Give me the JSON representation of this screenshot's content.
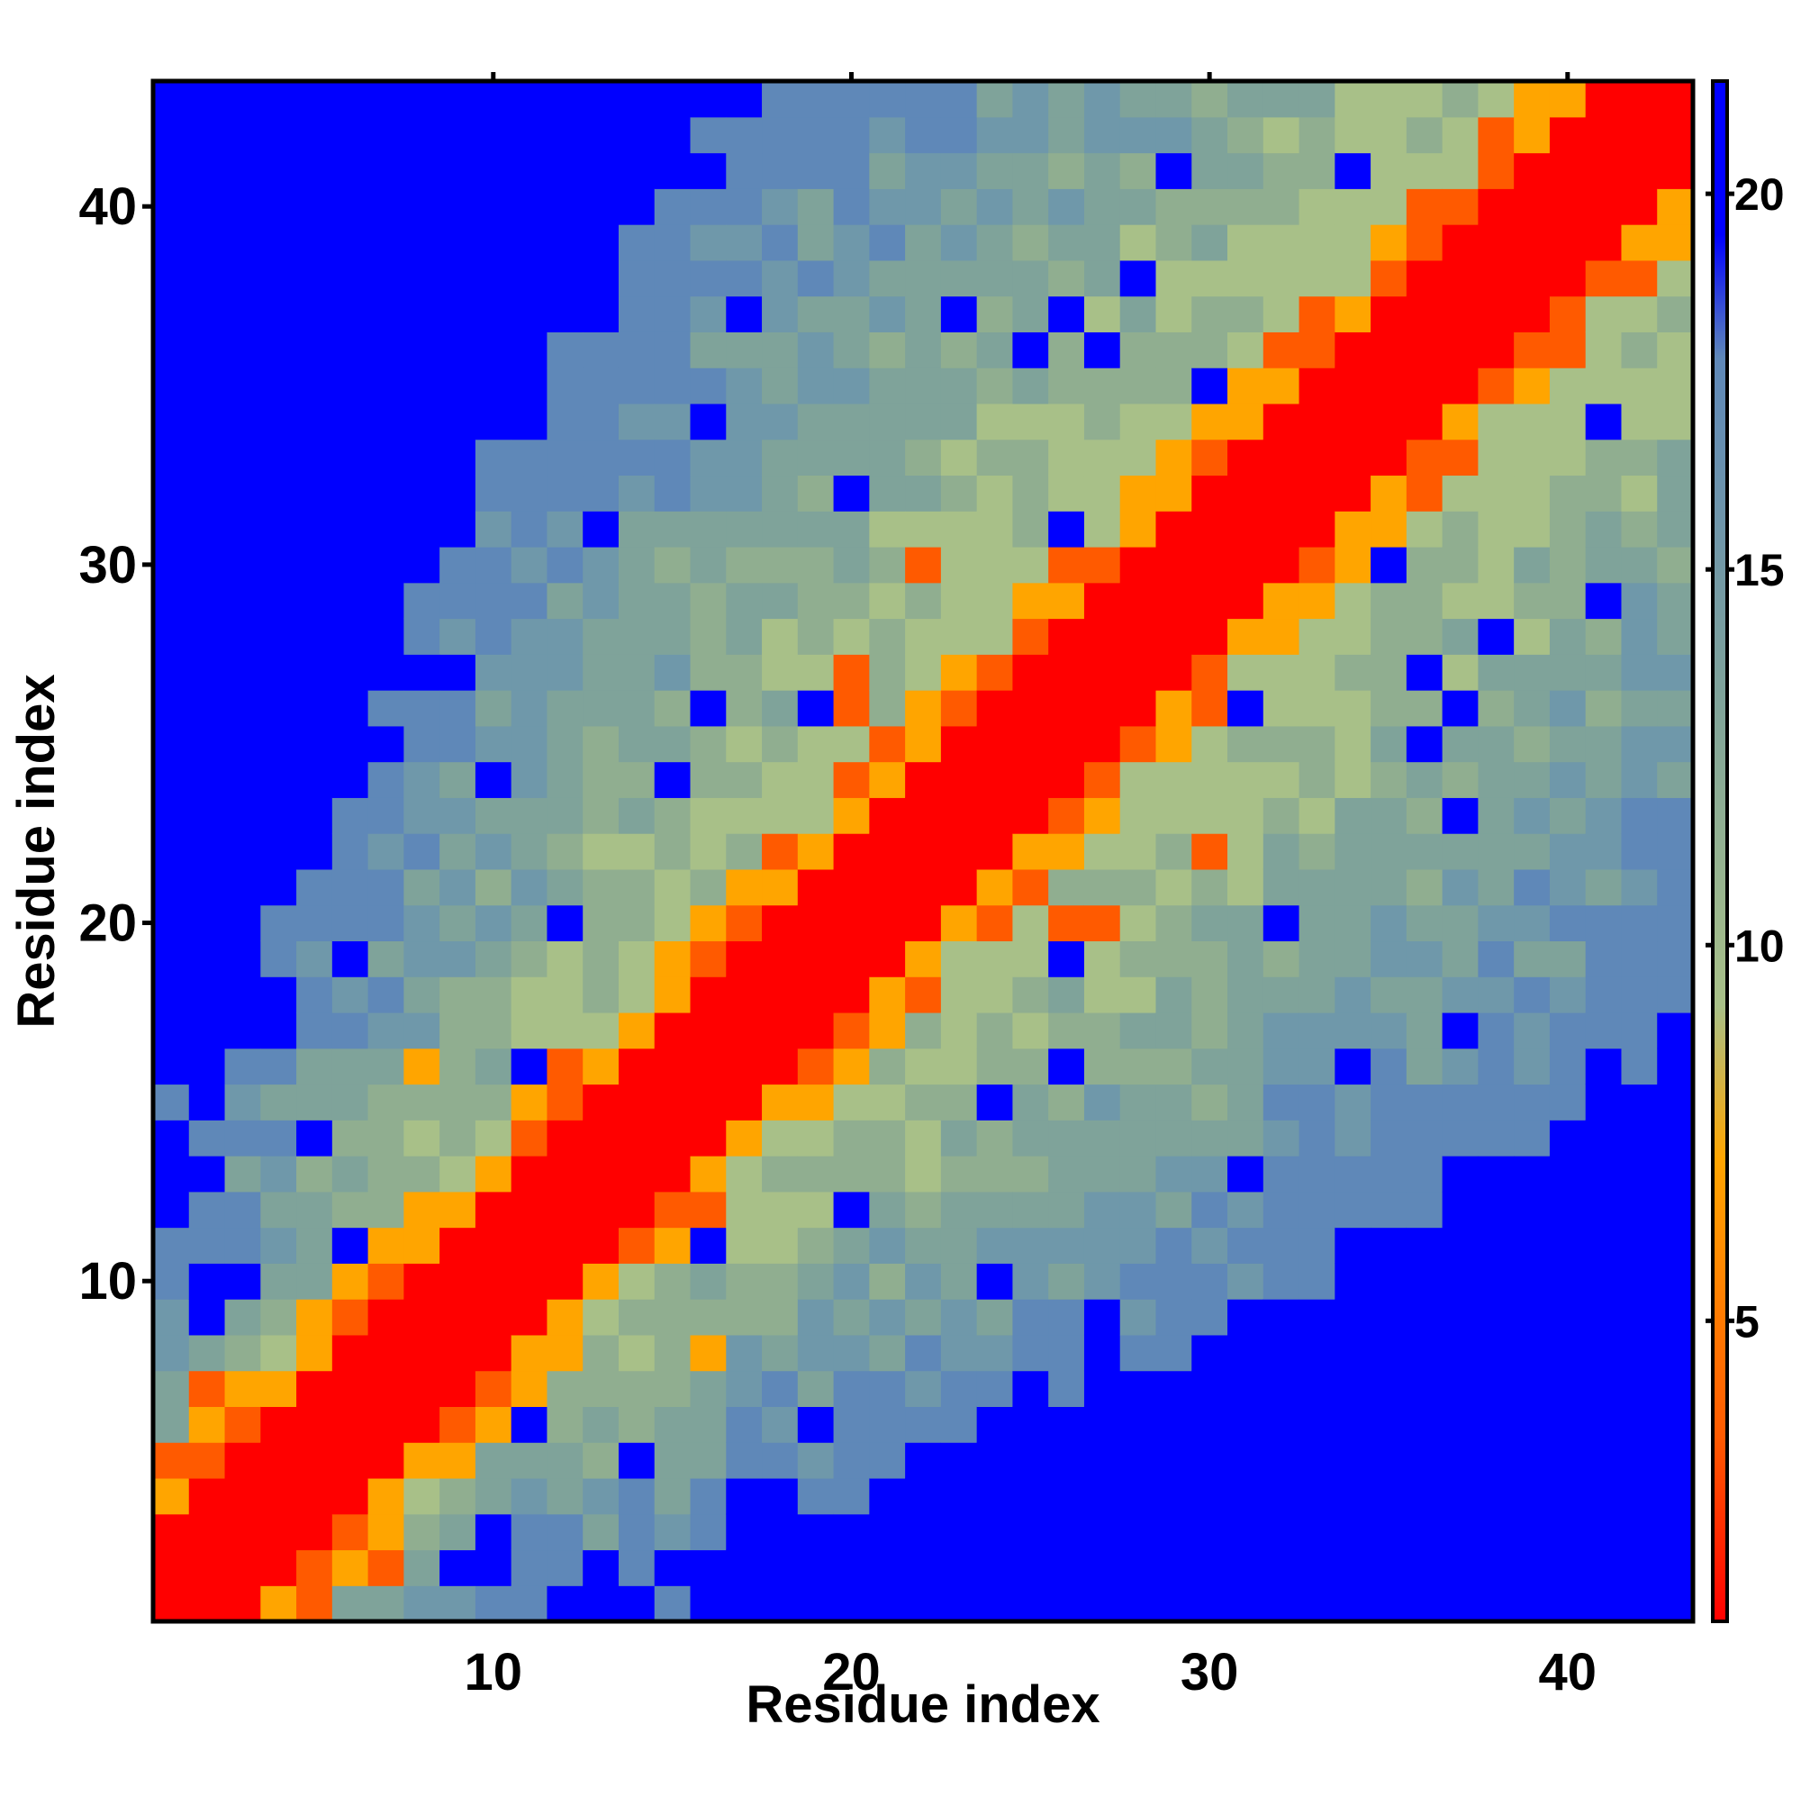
{
  "chart_data": {
    "type": "heatmap",
    "title": "",
    "xlabel": "Residue index",
    "ylabel": "Residue index",
    "n_residues": 43,
    "xlim": [
      0.5,
      43.5
    ],
    "ylim": [
      0.5,
      43.5
    ],
    "xticks": [
      10,
      20,
      30,
      40
    ],
    "yticks": [
      10,
      20,
      30,
      40
    ],
    "colorbar": {
      "ticks": [
        5,
        10,
        15,
        20
      ],
      "range": [
        1,
        21.5
      ],
      "colors": [
        "#ff0000",
        "#ff5a00",
        "#ffa500",
        "#a8c088",
        "#7fa39a",
        "#5f88b8",
        "#0000ff"
      ]
    },
    "description_of_values": "Cell value ~ distance; red on diagonal (≈1), orange/yellow near diagonal (4–8), olive/gray-blue mid (9–19), blue far (>20)"
  }
}
